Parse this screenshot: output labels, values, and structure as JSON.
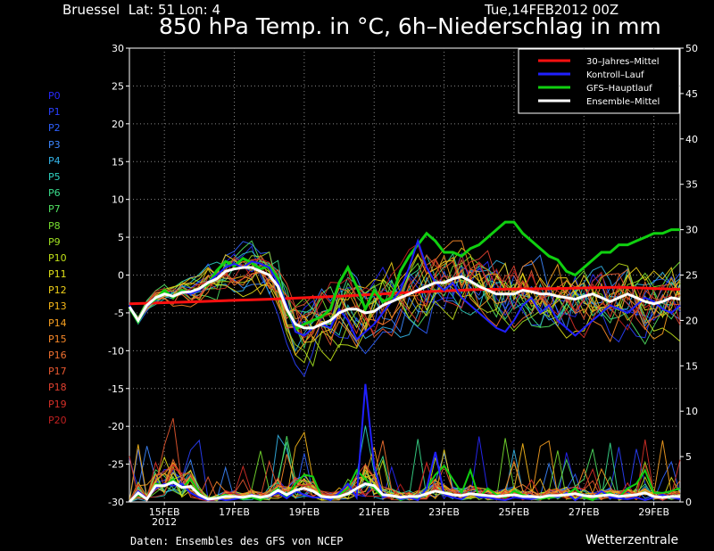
{
  "header": {
    "location": "Bruessel  Lat: 51 Lon: 4",
    "runtime": "Tue,14FEB2012 00Z",
    "title": "850 hPa Temp. in °C, 6h–Niederschlag in mm"
  },
  "footer": {
    "source": "Daten: Ensembles des GFS von NCEP",
    "brand": "Wetterzentrale"
  },
  "colors": {
    "background": "#000000",
    "climate_mean": "#ff1010",
    "control_run": "#2020ff",
    "main_run": "#10d010",
    "ensemble_mean": "#ffffff"
  },
  "members": [
    {
      "label": "P0",
      "color": "#2828ff"
    },
    {
      "label": "P1",
      "color": "#2a40ff"
    },
    {
      "label": "P2",
      "color": "#2e60ff"
    },
    {
      "label": "P3",
      "color": "#3c86ff"
    },
    {
      "label": "P4",
      "color": "#34b4e8"
    },
    {
      "label": "P5",
      "color": "#2ed0c0"
    },
    {
      "label": "P6",
      "color": "#3adc8c"
    },
    {
      "label": "P7",
      "color": "#50e060"
    },
    {
      "label": "P8",
      "color": "#78e030"
    },
    {
      "label": "P9",
      "color": "#a0e020"
    },
    {
      "label": "P10",
      "color": "#c0e018"
    },
    {
      "label": "P11",
      "color": "#e0e018"
    },
    {
      "label": "P12",
      "color": "#f0d018"
    },
    {
      "label": "P13",
      "color": "#f8b818"
    },
    {
      "label": "P14",
      "color": "#f8a020"
    },
    {
      "label": "P15",
      "color": "#f88828"
    },
    {
      "label": "P16",
      "color": "#f07030"
    },
    {
      "label": "P17",
      "color": "#e85830"
    },
    {
      "label": "P18",
      "color": "#e04030"
    },
    {
      "label": "P19",
      "color": "#d83028"
    },
    {
      "label": "P20",
      "color": "#c02020"
    }
  ],
  "chart_data": {
    "type": "line",
    "title": "850 hPa Temp. in °C, 6h–Niederschlag in mm",
    "x_ticks": [
      {
        "day": 1,
        "label": "15FEB"
      },
      {
        "day": 3,
        "label": "17FEB"
      },
      {
        "day": 5,
        "label": "19FEB"
      },
      {
        "day": 7,
        "label": "21FEB"
      },
      {
        "day": 9,
        "label": "23FEB"
      },
      {
        "day": 11,
        "label": "25FEB"
      },
      {
        "day": 13,
        "label": "27FEB"
      },
      {
        "day": 15,
        "label": "29FEB"
      }
    ],
    "x_year_label": "2012",
    "xlim": [
      0,
      15.75
    ],
    "y_left": {
      "min": -30,
      "max": 30,
      "ticks": [
        30,
        25,
        20,
        15,
        10,
        5,
        0,
        -5,
        -10,
        -15,
        -20,
        -25,
        -30
      ]
    },
    "y_right": {
      "min": 0,
      "max": 50,
      "ticks": [
        50,
        45,
        40,
        35,
        30,
        25,
        20,
        15,
        10,
        5,
        0
      ]
    },
    "grid": true,
    "legend_position": "top-right",
    "legend": [
      {
        "label": "30–Jahres–Mittel",
        "color": "#ff1010"
      },
      {
        "label": "Kontroll–Lauf",
        "color": "#2020ff"
      },
      {
        "label": "GFS–Hauptlauf",
        "color": "#10d010"
      },
      {
        "label": "Ensemble–Mittel",
        "color": "#ffffff"
      }
    ],
    "temperature_series": [
      {
        "name": "30–Jahres–Mittel",
        "color": "#ff1010",
        "width": 3,
        "x": [
          0,
          2,
          4,
          6,
          8,
          10,
          12,
          14,
          15.75
        ],
        "y": [
          -3.8,
          -3.5,
          -3.2,
          -2.8,
          -2.3,
          -1.9,
          -1.8,
          -1.6,
          -1.9
        ]
      },
      {
        "name": "GFS–Hauptlauf",
        "color": "#10d010",
        "width": 3,
        "x": [
          0,
          0.25,
          0.5,
          0.75,
          1,
          1.25,
          1.5,
          1.75,
          2,
          2.25,
          2.5,
          2.75,
          3,
          3.25,
          3.5,
          3.75,
          4,
          4.25,
          4.5,
          4.75,
          5,
          5.25,
          5.5,
          5.75,
          6,
          6.25,
          6.5,
          6.75,
          7,
          7.25,
          7.5,
          7.75,
          8,
          8.25,
          8.5,
          8.75,
          9,
          9.25,
          9.5,
          9.75,
          10,
          10.25,
          10.5,
          10.75,
          11,
          11.25,
          11.5,
          11.75,
          12,
          12.25,
          12.5,
          12.75,
          13,
          13.25,
          13.5,
          13.75,
          14,
          14.25,
          14.5,
          14.75,
          15,
          15.25,
          15.5,
          15.75
        ],
        "y": [
          -4.3,
          -6.2,
          -4.0,
          -3.2,
          -2.0,
          -3.0,
          -2.0,
          -2.4,
          -1.8,
          -1.2,
          0.6,
          1.8,
          1.2,
          2.2,
          1.6,
          0.8,
          1.2,
          -0.5,
          -4.5,
          -7.2,
          -6.5,
          -6.0,
          -5.5,
          -4.5,
          -1.0,
          1.0,
          -1.5,
          -4.5,
          -2.0,
          -3.5,
          -3.0,
          0.5,
          2.5,
          4.0,
          5.5,
          4.5,
          3.0,
          3.0,
          2.5,
          3.5,
          4.0,
          5.0,
          6.0,
          7.0,
          7.0,
          5.5,
          4.5,
          3.5,
          2.5,
          2.0,
          0.5,
          0.0,
          1.0,
          2.0,
          3.0,
          3.0,
          4.0,
          4.0,
          4.5,
          5.0,
          5.5,
          5.5,
          6.0,
          6.0
        ]
      },
      {
        "name": "Kontroll–Lauf",
        "color": "#2020ff",
        "width": 2,
        "x": [
          0,
          0.25,
          0.5,
          0.75,
          1,
          1.25,
          1.5,
          1.75,
          2,
          2.25,
          2.5,
          2.75,
          3,
          3.25,
          3.5,
          3.75,
          4,
          4.25,
          4.5,
          4.75,
          5,
          5.25,
          5.5,
          5.75,
          6,
          6.25,
          6.5,
          6.75,
          7,
          7.25,
          7.5,
          7.75,
          8,
          8.25,
          8.5,
          8.75,
          9,
          9.25,
          9.5,
          9.75,
          10,
          10.25,
          10.5,
          10.75,
          11,
          11.25,
          11.5,
          11.75,
          12,
          12.25,
          12.5,
          12.75,
          13,
          13.25,
          13.5,
          13.75,
          14,
          14.25,
          14.5,
          14.75,
          15,
          15.25,
          15.5,
          15.75
        ],
        "y": [
          -4.0,
          -6.0,
          -4.2,
          -3.0,
          -2.5,
          -2.8,
          -2.2,
          -2.5,
          -2.0,
          -1.0,
          0.0,
          1.0,
          1.5,
          1.0,
          1.8,
          1.5,
          1.0,
          -1.0,
          -4.0,
          -7.5,
          -8.0,
          -7.0,
          -6.5,
          -7.0,
          -4.5,
          -6.0,
          -8.5,
          -7.5,
          -6.5,
          -5.0,
          -3.5,
          -2.0,
          1.0,
          4.5,
          1.0,
          -1.0,
          -2.0,
          -1.0,
          -3.0,
          -4.0,
          -5.0,
          -6.0,
          -7.0,
          -7.5,
          -6.0,
          -4.0,
          -3.0,
          -5.0,
          -4.0,
          -6.0,
          -7.0,
          -8.0,
          -7.0,
          -6.0,
          -5.0,
          -4.0,
          -4.5,
          -5.0,
          -4.0,
          -3.0,
          -3.5,
          -4.5,
          -5.0,
          -4.0
        ]
      },
      {
        "name": "Ensemble–Mittel",
        "color": "#ffffff",
        "width": 3,
        "x": [
          0,
          0.25,
          0.5,
          0.75,
          1,
          1.25,
          1.5,
          1.75,
          2,
          2.25,
          2.5,
          2.75,
          3,
          3.25,
          3.5,
          3.75,
          4,
          4.25,
          4.5,
          4.75,
          5,
          5.25,
          5.5,
          5.75,
          6,
          6.25,
          6.5,
          6.75,
          7,
          7.25,
          7.5,
          7.75,
          8,
          8.25,
          8.5,
          8.75,
          9,
          9.25,
          9.5,
          9.75,
          10,
          10.25,
          10.5,
          10.75,
          11,
          11.25,
          11.5,
          11.75,
          12,
          12.25,
          12.5,
          12.75,
          13,
          13.25,
          13.5,
          13.75,
          14,
          14.25,
          14.5,
          14.75,
          15,
          15.25,
          15.5,
          15.75
        ],
        "y": [
          -4.2,
          -6.0,
          -4.0,
          -3.0,
          -2.5,
          -2.8,
          -2.3,
          -2.2,
          -1.8,
          -1.0,
          -0.5,
          0.5,
          0.8,
          1.0,
          1.0,
          0.5,
          0.0,
          -1.5,
          -4.5,
          -6.5,
          -7.0,
          -7.0,
          -6.5,
          -6.0,
          -5.0,
          -4.5,
          -4.5,
          -5.0,
          -4.8,
          -4.0,
          -3.5,
          -3.0,
          -2.5,
          -2.0,
          -1.5,
          -1.0,
          -1.0,
          -0.5,
          -0.2,
          -0.8,
          -1.5,
          -2.0,
          -2.5,
          -2.5,
          -2.5,
          -2.0,
          -2.2,
          -2.5,
          -2.5,
          -2.8,
          -3.0,
          -3.2,
          -2.8,
          -2.5,
          -3.0,
          -3.5,
          -3.0,
          -2.5,
          -3.0,
          -3.5,
          -3.8,
          -3.5,
          -3.0,
          -3.2
        ]
      }
    ],
    "precipitation_series": [
      {
        "name": "GFS–Hauptlauf",
        "color": "#10d010",
        "width": 2,
        "x": [
          0,
          0.25,
          0.5,
          0.75,
          1,
          1.25,
          1.5,
          1.75,
          2,
          2.25,
          2.5,
          2.75,
          3,
          3.25,
          3.5,
          3.75,
          4,
          4.25,
          4.5,
          4.75,
          5,
          5.25,
          5.5,
          5.75,
          6,
          6.25,
          6.5,
          6.75,
          7,
          7.25,
          7.5,
          7.75,
          8,
          8.25,
          8.5,
          8.75,
          9,
          9.25,
          9.5,
          9.75,
          10,
          10.25,
          10.5,
          10.75,
          11,
          11.25,
          11.5,
          11.75,
          12,
          12.25,
          12.5,
          12.75,
          13,
          13.25,
          13.5,
          13.75,
          14,
          14.25,
          14.5,
          14.75,
          15,
          15.25,
          15.5,
          15.75
        ],
        "y": [
          0,
          0.8,
          0.3,
          2.0,
          1.8,
          2.5,
          1.5,
          2.5,
          1.0,
          0.2,
          0.5,
          0.8,
          0.5,
          0.3,
          0.5,
          0.2,
          0.8,
          1.5,
          0.5,
          2.0,
          3.0,
          2.8,
          0.5,
          0.2,
          0.8,
          1.5,
          3.5,
          2.5,
          1.5,
          0.5,
          0.8,
          0.2,
          0.5,
          0.3,
          1.5,
          3.0,
          4.0,
          2.5,
          1.0,
          3.5,
          0.5,
          1.5,
          0.8,
          0.5,
          1.2,
          0.8,
          0.5,
          0.3,
          0.5,
          0.5,
          0.8,
          1.5,
          0.5,
          0.2,
          0.8,
          1.0,
          0.5,
          1.5,
          2.0,
          3.5,
          1.0,
          1.0,
          1.2,
          1.5
        ]
      },
      {
        "name": "Kontroll–Lauf",
        "color": "#2020ff",
        "width": 2,
        "x": [
          0,
          0.25,
          0.5,
          0.75,
          1,
          1.25,
          1.5,
          1.75,
          2,
          2.25,
          2.5,
          2.75,
          3,
          3.25,
          3.5,
          3.75,
          4,
          4.25,
          4.5,
          4.75,
          5,
          5.25,
          5.5,
          5.75,
          6,
          6.25,
          6.5,
          6.75,
          7,
          7.25,
          7.5,
          7.75,
          8,
          8.25,
          8.5,
          8.75,
          9,
          9.25,
          9.5,
          9.75,
          10,
          10.25,
          10.5,
          10.75,
          11,
          11.25,
          11.5,
          11.75,
          12,
          12.25,
          12.5,
          12.75,
          13,
          13.25,
          13.5,
          13.75,
          14,
          14.25,
          14.5,
          14.75,
          15,
          15.25,
          15.5,
          15.75
        ],
        "y": [
          0,
          1.2,
          0.4,
          1.5,
          2.0,
          1.8,
          2.0,
          1.0,
          0.5,
          0.2,
          0.4,
          0.2,
          0.3,
          0.5,
          0.8,
          0.5,
          0.6,
          1.0,
          0.4,
          1.2,
          0.8,
          0.5,
          0.5,
          0.2,
          1.0,
          2.0,
          0.5,
          13.0,
          4.0,
          0.5,
          0.8,
          0.3,
          0.5,
          0.2,
          1.5,
          5.5,
          0.8,
          0.5,
          0.3,
          1.0,
          0.5,
          0.5,
          0.3,
          0.2,
          0.5,
          0.4,
          0.3,
          0.5,
          0.8,
          0.5,
          1.0,
          0.2,
          0.8,
          0.5,
          1.2,
          0.5,
          0.4,
          0.3,
          0.5,
          0.2,
          0.5,
          0.8,
          0.5,
          0.3
        ]
      },
      {
        "name": "Ensemble–Mittel",
        "color": "#ffffff",
        "width": 3,
        "x": [
          0,
          0.25,
          0.5,
          0.75,
          1,
          1.25,
          1.5,
          1.75,
          2,
          2.25,
          2.5,
          2.75,
          3,
          3.25,
          3.5,
          3.75,
          4,
          4.25,
          4.5,
          4.75,
          5,
          5.25,
          5.5,
          5.75,
          6,
          6.25,
          6.5,
          6.75,
          7,
          7.25,
          7.5,
          7.75,
          8,
          8.25,
          8.5,
          8.75,
          9,
          9.25,
          9.5,
          9.75,
          10,
          10.25,
          10.5,
          10.75,
          11,
          11.25,
          11.5,
          11.75,
          12,
          12.25,
          12.5,
          12.75,
          13,
          13.25,
          13.5,
          13.75,
          14,
          14.25,
          14.5,
          14.75,
          15,
          15.25,
          15.5,
          15.75
        ],
        "y": [
          0,
          1.0,
          0.3,
          1.8,
          1.8,
          2.2,
          1.6,
          1.7,
          0.8,
          0.3,
          0.4,
          0.6,
          0.6,
          0.5,
          0.7,
          0.5,
          0.7,
          1.3,
          0.8,
          1.3,
          1.5,
          1.2,
          0.6,
          0.5,
          0.6,
          0.9,
          1.5,
          2.0,
          1.8,
          0.8,
          0.7,
          0.5,
          0.6,
          0.6,
          0.9,
          1.2,
          1.0,
          0.8,
          0.7,
          0.9,
          0.8,
          0.7,
          0.6,
          0.7,
          0.8,
          0.6,
          0.6,
          0.5,
          0.7,
          0.7,
          0.8,
          0.9,
          0.7,
          0.6,
          0.7,
          0.8,
          0.6,
          0.7,
          0.8,
          1.0,
          0.6,
          0.5,
          0.6,
          0.6
        ]
      }
    ]
  }
}
